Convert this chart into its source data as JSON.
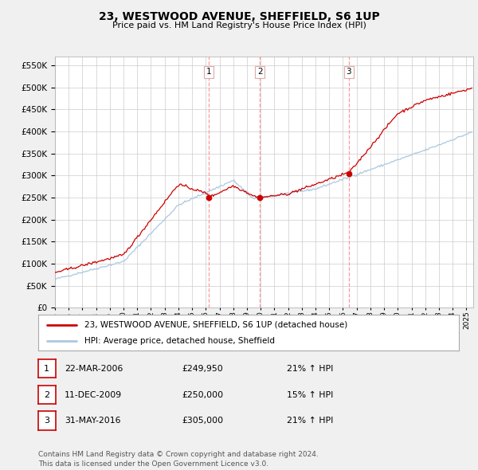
{
  "title": "23, WESTWOOD AVENUE, SHEFFIELD, S6 1UP",
  "subtitle": "Price paid vs. HM Land Registry's House Price Index (HPI)",
  "title_fontsize": 10,
  "subtitle_fontsize": 8,
  "yticks": [
    0,
    50000,
    100000,
    150000,
    200000,
    250000,
    300000,
    350000,
    400000,
    450000,
    500000,
    550000
  ],
  "ylim": [
    0,
    570000
  ],
  "xlim_start": 1995.0,
  "xlim_end": 2025.5,
  "bg_color": "#f0f0f0",
  "plot_bg_color": "#ffffff",
  "grid_color": "#cccccc",
  "red_line_color": "#cc0000",
  "blue_line_color": "#aac8e0",
  "vline_color": "#ff9999",
  "marker_color": "#cc0000",
  "sale_dates": [
    2006.22,
    2009.94,
    2016.42
  ],
  "sale_prices": [
    249950,
    250000,
    305000
  ],
  "annotations": [
    "1",
    "2",
    "3"
  ],
  "legend_entries": [
    "23, WESTWOOD AVENUE, SHEFFIELD, S6 1UP (detached house)",
    "HPI: Average price, detached house, Sheffield"
  ],
  "table_data": [
    [
      "1",
      "22-MAR-2006",
      "£249,950",
      "21% ↑ HPI"
    ],
    [
      "2",
      "11-DEC-2009",
      "£250,000",
      "15% ↑ HPI"
    ],
    [
      "3",
      "31-MAY-2016",
      "£305,000",
      "21% ↑ HPI"
    ]
  ],
  "footer": "Contains HM Land Registry data © Crown copyright and database right 2024.\nThis data is licensed under the Open Government Licence v3.0.",
  "footer_fontsize": 6.5
}
